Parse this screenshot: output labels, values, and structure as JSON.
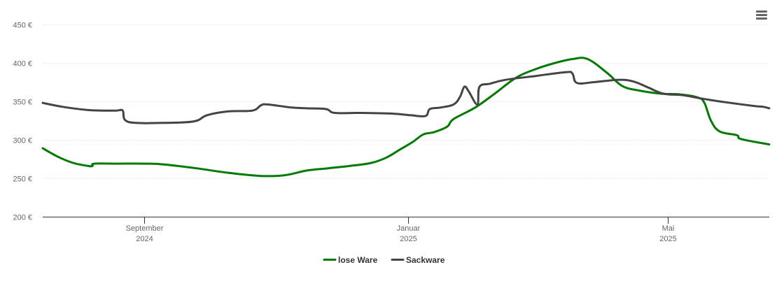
{
  "menu_icon": "hamburger-menu-icon",
  "chart_data": {
    "type": "line",
    "title": "",
    "xlabel": "",
    "ylabel": "",
    "ylim": [
      200,
      450
    ],
    "yticks": [
      200,
      250,
      300,
      350,
      400,
      450
    ],
    "ytick_labels": [
      "200 €",
      "250 €",
      "300 €",
      "350 €",
      "400 €",
      "450 €"
    ],
    "xlim": [
      "2024-07-16",
      "2025-06-17"
    ],
    "xticks": [
      {
        "date": "2024-09-01",
        "label": "September",
        "sublabel": "2024"
      },
      {
        "date": "2025-01-01",
        "label": "Januar",
        "sublabel": "2025"
      },
      {
        "date": "2025-05-01",
        "label": "Mai",
        "sublabel": "2025"
      }
    ],
    "legend_position": "bottom-center",
    "grid": true,
    "series": [
      {
        "name": "lose Ware",
        "color": "#007a00",
        "points": [
          [
            "2024-07-16",
            289
          ],
          [
            "2024-07-23",
            278
          ],
          [
            "2024-07-30",
            270
          ],
          [
            "2024-08-06",
            266
          ],
          [
            "2024-08-08",
            266
          ],
          [
            "2024-08-09",
            269
          ],
          [
            "2024-08-20",
            269
          ],
          [
            "2024-09-01",
            269
          ],
          [
            "2024-09-10",
            268
          ],
          [
            "2024-09-25",
            263
          ],
          [
            "2024-10-10",
            257
          ],
          [
            "2024-10-25",
            253
          ],
          [
            "2024-11-05",
            254
          ],
          [
            "2024-11-15",
            260
          ],
          [
            "2024-11-25",
            263
          ],
          [
            "2024-12-05",
            266
          ],
          [
            "2024-12-15",
            270
          ],
          [
            "2024-12-22",
            277
          ],
          [
            "2024-12-28",
            287
          ],
          [
            "2025-01-03",
            297
          ],
          [
            "2025-01-08",
            307
          ],
          [
            "2025-01-13",
            310
          ],
          [
            "2025-01-19",
            317
          ],
          [
            "2025-01-22",
            327
          ],
          [
            "2025-02-01",
            342
          ],
          [
            "2025-02-10",
            360
          ],
          [
            "2025-02-20",
            381
          ],
          [
            "2025-03-01",
            392
          ],
          [
            "2025-03-10",
            400
          ],
          [
            "2025-03-18",
            405
          ],
          [
            "2025-03-25",
            405
          ],
          [
            "2025-04-03",
            387
          ],
          [
            "2025-04-10",
            370
          ],
          [
            "2025-04-18",
            364
          ],
          [
            "2025-04-28",
            360
          ],
          [
            "2025-05-07",
            359
          ],
          [
            "2025-05-15",
            355
          ],
          [
            "2025-05-18",
            348
          ],
          [
            "2025-05-21",
            325
          ],
          [
            "2025-05-25",
            311
          ],
          [
            "2025-06-02",
            306
          ],
          [
            "2025-06-04",
            301
          ],
          [
            "2025-06-17",
            294
          ]
        ]
      },
      {
        "name": "Sackware",
        "color": "#444444",
        "points": [
          [
            "2024-07-16",
            348
          ],
          [
            "2024-07-25",
            343
          ],
          [
            "2024-08-05",
            339
          ],
          [
            "2024-08-13",
            338
          ],
          [
            "2024-08-19",
            338
          ],
          [
            "2024-08-22",
            338
          ],
          [
            "2024-08-23",
            326
          ],
          [
            "2024-08-28",
            322
          ],
          [
            "2024-09-10",
            322
          ],
          [
            "2024-09-24",
            324
          ],
          [
            "2024-09-30",
            332
          ],
          [
            "2024-10-10",
            337
          ],
          [
            "2024-10-21",
            338
          ],
          [
            "2024-10-25",
            345
          ],
          [
            "2024-10-28",
            346
          ],
          [
            "2024-11-08",
            342
          ],
          [
            "2024-11-15",
            341
          ],
          [
            "2024-11-24",
            340
          ],
          [
            "2024-11-28",
            335
          ],
          [
            "2024-12-10",
            335
          ],
          [
            "2024-12-25",
            334
          ],
          [
            "2025-01-02",
            332
          ],
          [
            "2025-01-09",
            331
          ],
          [
            "2025-01-11",
            340
          ],
          [
            "2025-01-16",
            342
          ],
          [
            "2025-01-22",
            346
          ],
          [
            "2025-01-25",
            356
          ],
          [
            "2025-01-27",
            369
          ],
          [
            "2025-01-29",
            363
          ],
          [
            "2025-02-02",
            346
          ],
          [
            "2025-02-03",
            369
          ],
          [
            "2025-02-08",
            373
          ],
          [
            "2025-02-15",
            378
          ],
          [
            "2025-03-01",
            383
          ],
          [
            "2025-03-15",
            388
          ],
          [
            "2025-03-18",
            386
          ],
          [
            "2025-03-20",
            374
          ],
          [
            "2025-03-28",
            375
          ],
          [
            "2025-04-08",
            378
          ],
          [
            "2025-04-15",
            376
          ],
          [
            "2025-04-22",
            368
          ],
          [
            "2025-04-29",
            360
          ],
          [
            "2025-05-08",
            358
          ],
          [
            "2025-05-18",
            353
          ],
          [
            "2025-05-30",
            348
          ],
          [
            "2025-06-10",
            344
          ],
          [
            "2025-06-14",
            343
          ],
          [
            "2025-06-17",
            341
          ]
        ]
      }
    ]
  }
}
